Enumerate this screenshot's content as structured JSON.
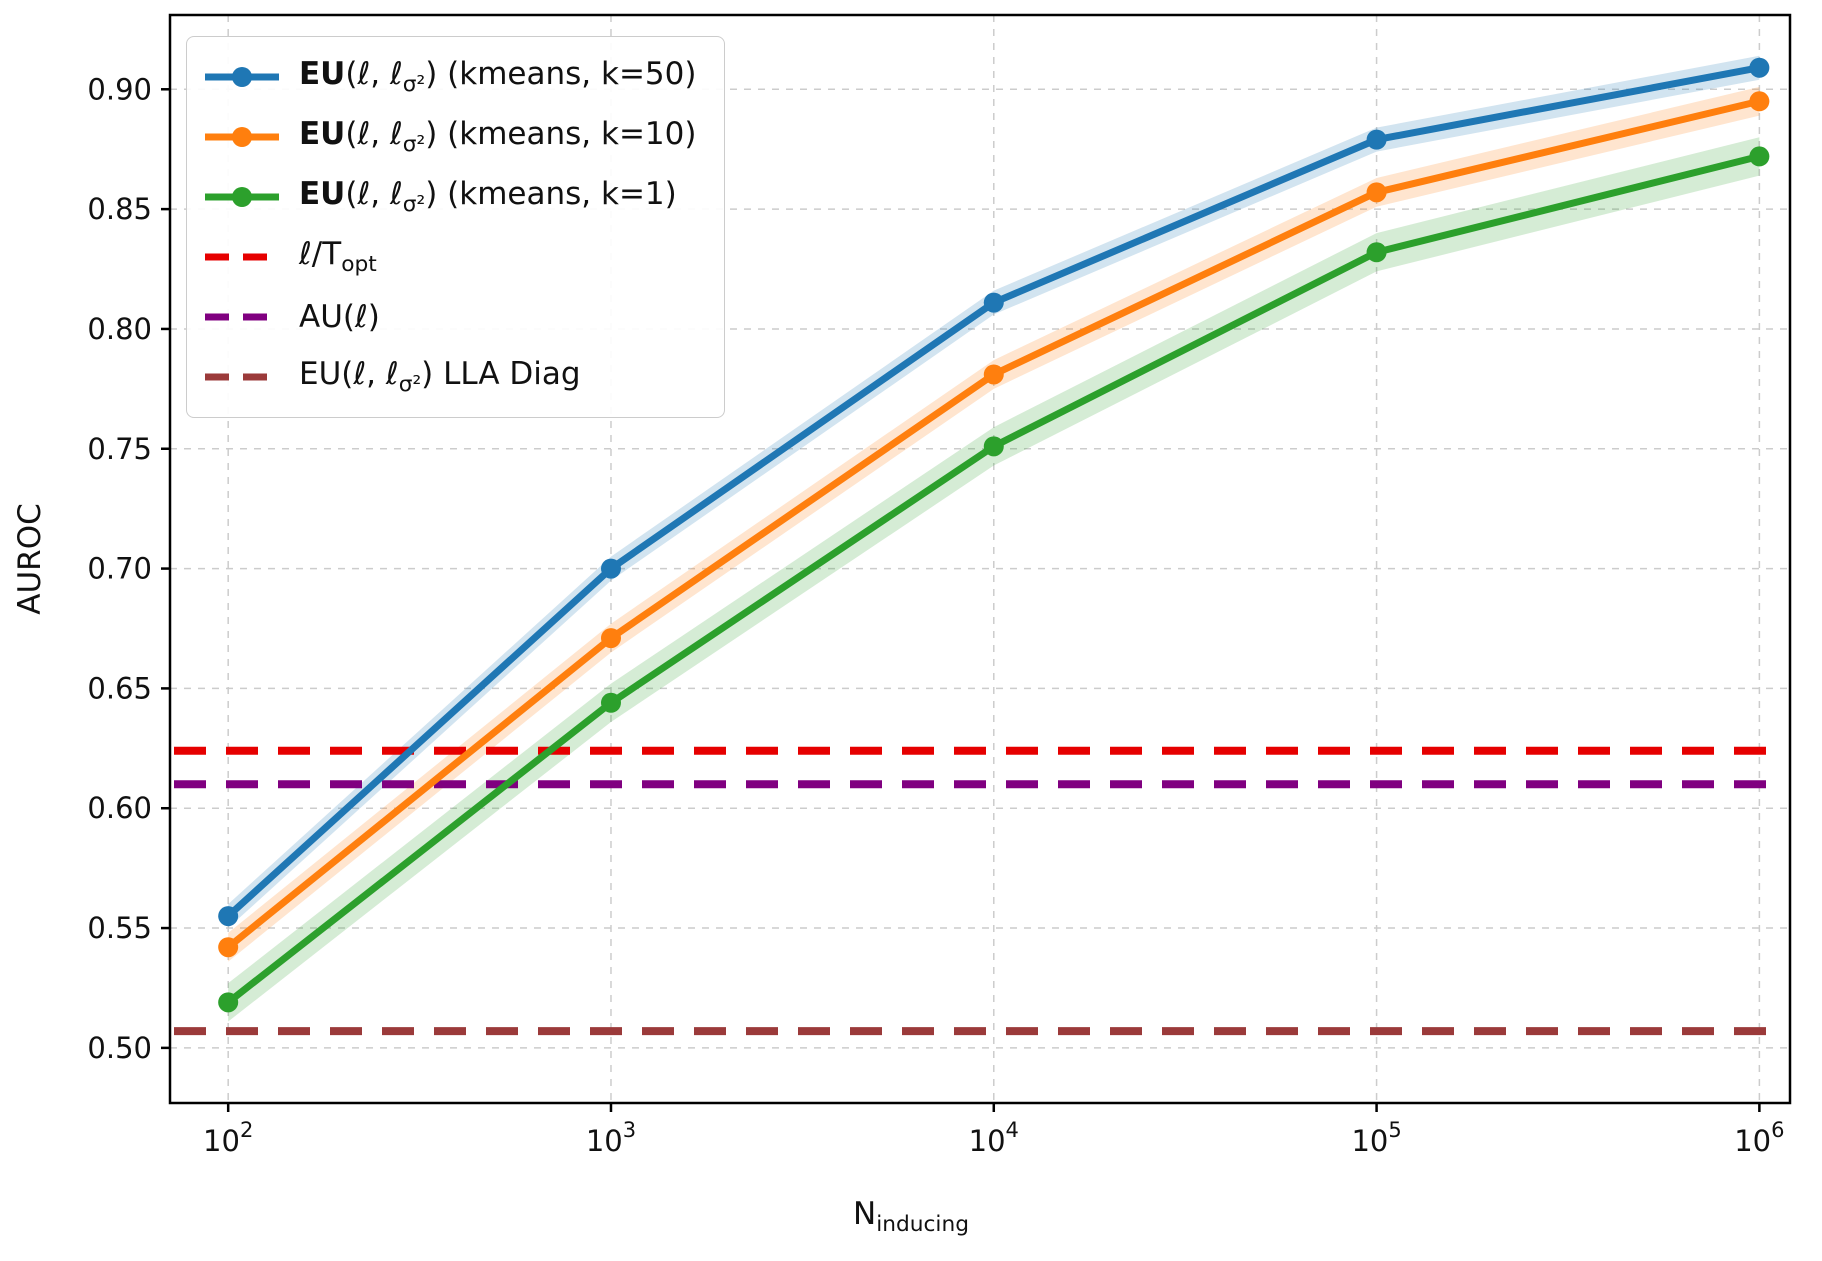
{
  "figure": {
    "background": "#ffffff",
    "spine_color": "#000000",
    "grid_color": "#cccccc"
  },
  "chart_data": {
    "type": "line",
    "xscale": "log",
    "x": [
      100,
      1000,
      10000,
      100000,
      1000000
    ],
    "series": [
      {
        "name": "EU(ℓ, ℓσ²) (kmeans, k=50)",
        "color": "#1f77b4",
        "values": [
          0.555,
          0.7,
          0.811,
          0.879,
          0.909
        ],
        "band": 0.005
      },
      {
        "name": "EU(ℓ, ℓσ²) (kmeans, k=10)",
        "color": "#ff7f0e",
        "values": [
          0.542,
          0.671,
          0.781,
          0.857,
          0.895
        ],
        "band": 0.006
      },
      {
        "name": "EU(ℓ, ℓσ²) (kmeans, k=1)",
        "color": "#2ca02c",
        "values": [
          0.519,
          0.644,
          0.751,
          0.832,
          0.872
        ],
        "band": 0.008
      }
    ],
    "hlines": [
      {
        "name": "ℓ/T_opt",
        "y": 0.624,
        "color": "#e60000"
      },
      {
        "name": "AU(ℓ)",
        "y": 0.61,
        "color": "#800080"
      },
      {
        "name": "EU(ℓ, ℓσ²) LLA Diag",
        "y": 0.507,
        "color": "#9b3a3a"
      }
    ],
    "xlabel": "N_{inducing}",
    "ylabel": "AUROC",
    "xticks": [
      100,
      1000,
      10000,
      100000,
      1000000
    ],
    "xtick_labels": [
      "10^2",
      "10^3",
      "10^4",
      "10^5",
      "10^6"
    ],
    "yticks": [
      0.5,
      0.55,
      0.6,
      0.65,
      0.7,
      0.75,
      0.8,
      0.85,
      0.9
    ],
    "ytick_labels": [
      "0.50",
      "0.55",
      "0.60",
      "0.65",
      "0.70",
      "0.75",
      "0.80",
      "0.85",
      "0.90"
    ],
    "xlim_log10": [
      1.848,
      6.08
    ],
    "ylim": [
      0.477,
      0.931
    ],
    "grid": true,
    "legend_position": "upper-left"
  },
  "legend": {
    "entries": [
      {
        "label": "**EU**(ℓ, ℓ_{σ²}) (kmeans, k=50)",
        "color": "#1f77b4",
        "style": "solid-marker"
      },
      {
        "label": "**EU**(ℓ, ℓ_{σ²}) (kmeans, k=10)",
        "color": "#ff7f0e",
        "style": "solid-marker"
      },
      {
        "label": "**EU**(ℓ, ℓ_{σ²}) (kmeans, k=1)",
        "color": "#2ca02c",
        "style": "solid-marker"
      },
      {
        "label": "ℓ/T_{opt}",
        "color": "#e60000",
        "style": "dashed"
      },
      {
        "label": "AU(ℓ)",
        "color": "#800080",
        "style": "dashed"
      },
      {
        "label": "EU(ℓ, ℓ_{σ²}) LLA Diag",
        "color": "#9b3a3a",
        "style": "dashed"
      }
    ]
  }
}
